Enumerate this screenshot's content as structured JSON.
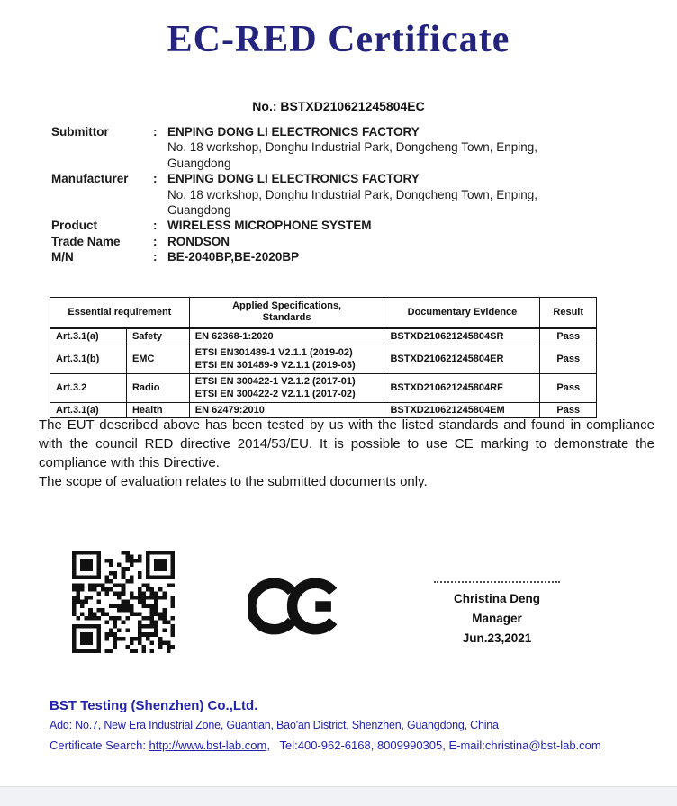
{
  "title": "EC-RED Certificate",
  "certificate_no": "No.: BSTXD210621245804EC",
  "fields": [
    {
      "label": "Submittor",
      "colon": ":",
      "value": "ENPING DONG LI ELECTRONICS FACTORY",
      "address": "No. 18 workshop, Donghu Industrial Park, Dongcheng Town, Enping,\nGuangdong"
    },
    {
      "label": "Manufacturer",
      "colon": ":",
      "value": "ENPING DONG LI ELECTRONICS FACTORY",
      "address": "No. 18 workshop, Donghu Industrial Park, Dongcheng Town, Enping,\nGuangdong"
    },
    {
      "label": "Product",
      "colon": ":",
      "value": "WIRELESS MICROPHONE SYSTEM"
    },
    {
      "label": "Trade Name",
      "colon": ":",
      "value": "RONDSON"
    },
    {
      "label": "M/N",
      "colon": ":",
      "value": "BE-2040BP,BE-2020BP"
    }
  ],
  "table": {
    "headers": {
      "essential": "Essential requirement",
      "specs": "Applied Specifications,\nStandards",
      "evidence": "Documentary Evidence",
      "result": "Result"
    },
    "rows": [
      {
        "article": "Art.3.1(a)",
        "category": "Safety",
        "specs": "EN 62368-1:2020",
        "evidence": "BSTXD210621245804SR",
        "result": "Pass"
      },
      {
        "article": "Art.3.1(b)",
        "category": "EMC",
        "specs": "ETSI EN301489-1 V2.1.1 (2019-02)\nETSI EN 301489-9 V2.1.1 (2019-03)",
        "evidence": "BSTXD210621245804ER",
        "result": "Pass"
      },
      {
        "article": "Art.3.2",
        "category": "Radio",
        "specs": "ETSI EN 300422-1 V2.1.2 (2017-01)\nETSI EN 300422-2 V2.1.1 (2017-02)",
        "evidence": "BSTXD210621245804RF",
        "result": "Pass"
      },
      {
        "article": "Art.3.1(a)",
        "category": "Health",
        "specs": "EN 62479:2010",
        "evidence": "BSTXD210621245804EM",
        "result": "Pass"
      }
    ]
  },
  "statement": {
    "para1": "The EUT described above has been tested by us with the listed standards and found in compliance with the council RED directive 2014/53/EU. It is possible to use CE marking to demonstrate the compliance with this Directive.",
    "para2": "The scope of evaluation relates to the submitted documents only."
  },
  "marks": {
    "qr_code": "qr-code",
    "ce_mark": "CE conformity mark"
  },
  "signature": {
    "name": "Christina Deng",
    "role": "Manager",
    "date": "Jun.23,2021"
  },
  "footer": {
    "company": "BST Testing (Shenzhen) Co.,Ltd.",
    "address": "Add: No.7, New Era Industrial Zone, Guantian, Bao'an District, Shenzhen, Guangdong, China",
    "search_label": "Certificate Search: ",
    "search_url": "http://www.bst-lab.com",
    "search_suffix": ",   Tel:400-962-6168, 8009990305, E-mail:christina@bst-lab.com"
  },
  "colors": {
    "title_navy": "#24247e",
    "footer_blue": "#2323ad",
    "text_black": "#1a1a1a",
    "table_border": "#141414"
  }
}
